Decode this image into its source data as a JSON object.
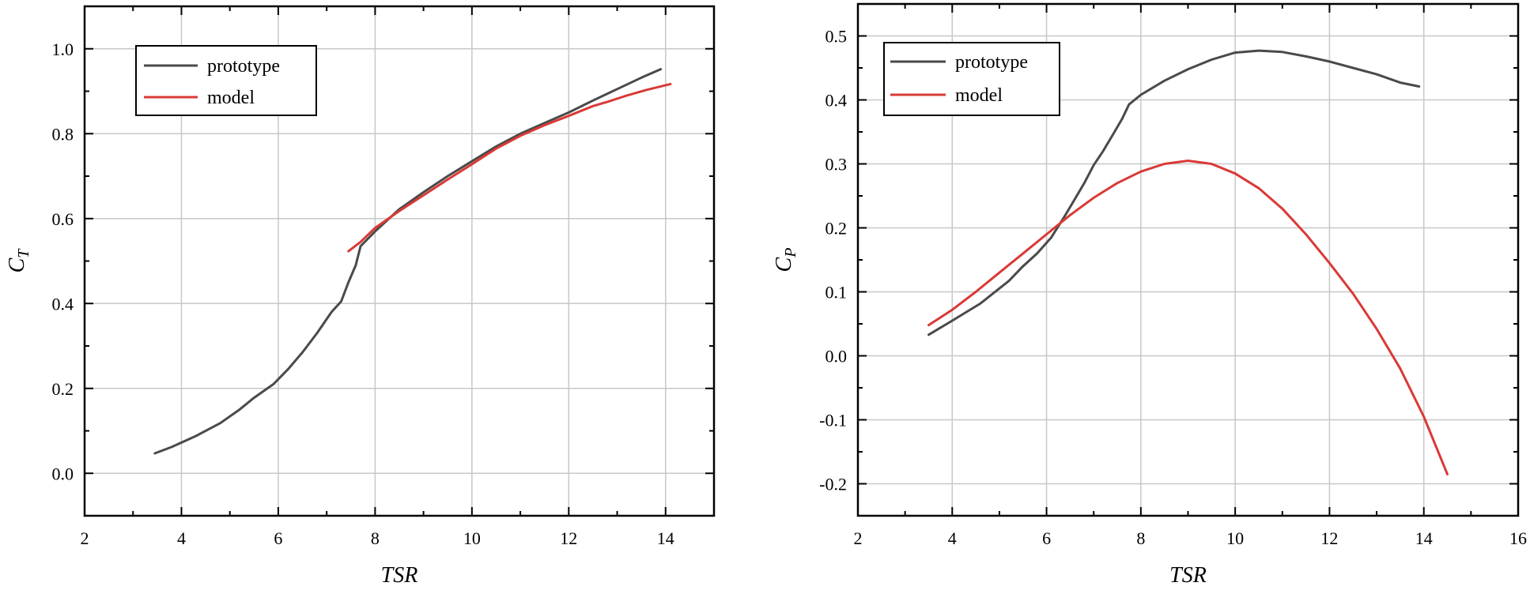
{
  "chart_data": [
    {
      "type": "line",
      "xlabel": "TSR",
      "ylabel": "C_T",
      "ylabel_main": "C",
      "ylabel_sub": "T",
      "xlim": [
        2,
        15
      ],
      "ylim": [
        -0.1,
        1.1
      ],
      "xticks": [
        2,
        4,
        6,
        8,
        10,
        12,
        14
      ],
      "yticks": [
        0.0,
        0.2,
        0.4,
        0.6,
        0.8,
        1.0
      ],
      "xtick_labels": [
        "2",
        "4",
        "6",
        "8",
        "10",
        "12",
        "14"
      ],
      "ytick_labels": [
        "0.0",
        "0.2",
        "0.4",
        "0.6",
        "0.8",
        "1.0"
      ],
      "grid": true,
      "legend_position": "top-left",
      "series": [
        {
          "name": "prototype",
          "color": "#4a4a4a",
          "x": [
            3.45,
            3.8,
            4.3,
            4.8,
            5.2,
            5.5,
            5.9,
            6.2,
            6.5,
            6.8,
            7.1,
            7.3,
            7.45,
            7.6,
            7.7,
            8.0,
            8.5,
            9.0,
            9.5,
            10.0,
            10.5,
            11.0,
            11.5,
            12.0,
            12.5,
            13.0,
            13.5,
            13.9
          ],
          "y": [
            0.047,
            0.062,
            0.088,
            0.118,
            0.15,
            0.178,
            0.21,
            0.245,
            0.285,
            0.33,
            0.38,
            0.405,
            0.45,
            0.49,
            0.535,
            0.57,
            0.622,
            0.662,
            0.7,
            0.735,
            0.77,
            0.8,
            0.825,
            0.85,
            0.878,
            0.905,
            0.932,
            0.952
          ]
        },
        {
          "name": "model",
          "color": "#d93a36",
          "x": [
            7.45,
            7.7,
            8.0,
            8.5,
            9.0,
            9.5,
            10.0,
            10.5,
            11.0,
            11.5,
            12.0,
            12.5,
            12.8,
            13.2,
            13.6,
            14.1
          ],
          "y": [
            0.523,
            0.545,
            0.578,
            0.618,
            0.655,
            0.692,
            0.728,
            0.765,
            0.795,
            0.82,
            0.842,
            0.865,
            0.875,
            0.89,
            0.903,
            0.917
          ]
        }
      ]
    },
    {
      "type": "line",
      "xlabel": "TSR",
      "ylabel": "C_P",
      "ylabel_main": "C",
      "ylabel_sub": "P",
      "xlim": [
        2,
        16
      ],
      "ylim": [
        -0.25,
        0.55
      ],
      "xticks": [
        2,
        4,
        6,
        8,
        10,
        12,
        14,
        16
      ],
      "yticks": [
        -0.2,
        -0.1,
        0.0,
        0.1,
        0.2,
        0.3,
        0.4,
        0.5
      ],
      "xtick_labels": [
        "2",
        "4",
        "6",
        "8",
        "10",
        "12",
        "14",
        "16"
      ],
      "ytick_labels": [
        "-0.2",
        "-0.1",
        "0.0",
        "0.1",
        "0.2",
        "0.3",
        "0.4",
        "0.5"
      ],
      "grid": true,
      "legend_position": "top-left",
      "series": [
        {
          "name": "prototype",
          "color": "#4a4a4a",
          "x": [
            3.5,
            4.0,
            4.6,
            5.2,
            5.5,
            5.8,
            6.1,
            6.4,
            6.8,
            7.0,
            7.2,
            7.4,
            7.6,
            7.75,
            8.0,
            8.5,
            9.0,
            9.5,
            10.0,
            10.5,
            11.0,
            11.5,
            12.0,
            12.5,
            13.0,
            13.5,
            13.9
          ],
          "y": [
            0.033,
            0.055,
            0.082,
            0.117,
            0.14,
            0.16,
            0.185,
            0.22,
            0.27,
            0.298,
            0.32,
            0.345,
            0.37,
            0.393,
            0.408,
            0.43,
            0.448,
            0.463,
            0.474,
            0.477,
            0.475,
            0.468,
            0.46,
            0.45,
            0.44,
            0.427,
            0.421
          ]
        },
        {
          "name": "model",
          "color": "#d93a36",
          "x": [
            3.5,
            4.0,
            4.5,
            5.0,
            5.5,
            6.0,
            6.5,
            7.0,
            7.5,
            8.0,
            8.5,
            9.0,
            9.5,
            10.0,
            10.5,
            11.0,
            11.5,
            12.0,
            12.5,
            13.0,
            13.5,
            14.0,
            14.5
          ],
          "y": [
            0.048,
            0.072,
            0.1,
            0.13,
            0.16,
            0.19,
            0.22,
            0.247,
            0.27,
            0.288,
            0.3,
            0.305,
            0.3,
            0.285,
            0.262,
            0.23,
            0.19,
            0.145,
            0.097,
            0.042,
            -0.02,
            -0.095,
            -0.185
          ]
        }
      ]
    }
  ]
}
